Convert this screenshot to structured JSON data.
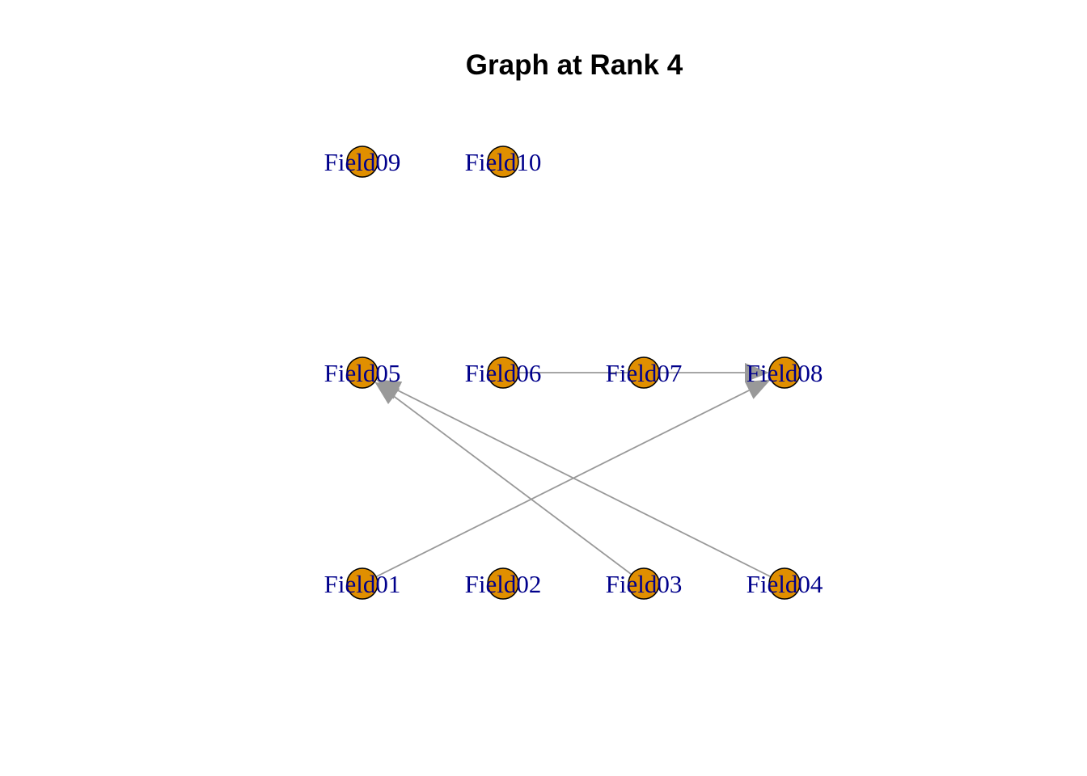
{
  "title": "Graph at Rank 4",
  "colors": {
    "node_fill": "#E08F00",
    "node_stroke": "#000000",
    "label": "#00008B",
    "edge": "#999999"
  },
  "nodes": [
    {
      "id": "Field01",
      "label": "Field01",
      "row": 0,
      "col": 0
    },
    {
      "id": "Field02",
      "label": "Field02",
      "row": 0,
      "col": 1
    },
    {
      "id": "Field03",
      "label": "Field03",
      "row": 0,
      "col": 2
    },
    {
      "id": "Field04",
      "label": "Field04",
      "row": 0,
      "col": 3
    },
    {
      "id": "Field05",
      "label": "Field05",
      "row": 1,
      "col": 0
    },
    {
      "id": "Field06",
      "label": "Field06",
      "row": 1,
      "col": 1
    },
    {
      "id": "Field07",
      "label": "Field07",
      "row": 1,
      "col": 2
    },
    {
      "id": "Field08",
      "label": "Field08",
      "row": 1,
      "col": 3
    },
    {
      "id": "Field09",
      "label": "Field09",
      "row": 2,
      "col": 0
    },
    {
      "id": "Field10",
      "label": "Field10",
      "row": 2,
      "col": 1
    }
  ],
  "edges": [
    {
      "from": "Field01",
      "to": "Field08"
    },
    {
      "from": "Field03",
      "to": "Field05"
    },
    {
      "from": "Field04",
      "to": "Field05"
    },
    {
      "from": "Field06",
      "to": "Field08"
    }
  ]
}
